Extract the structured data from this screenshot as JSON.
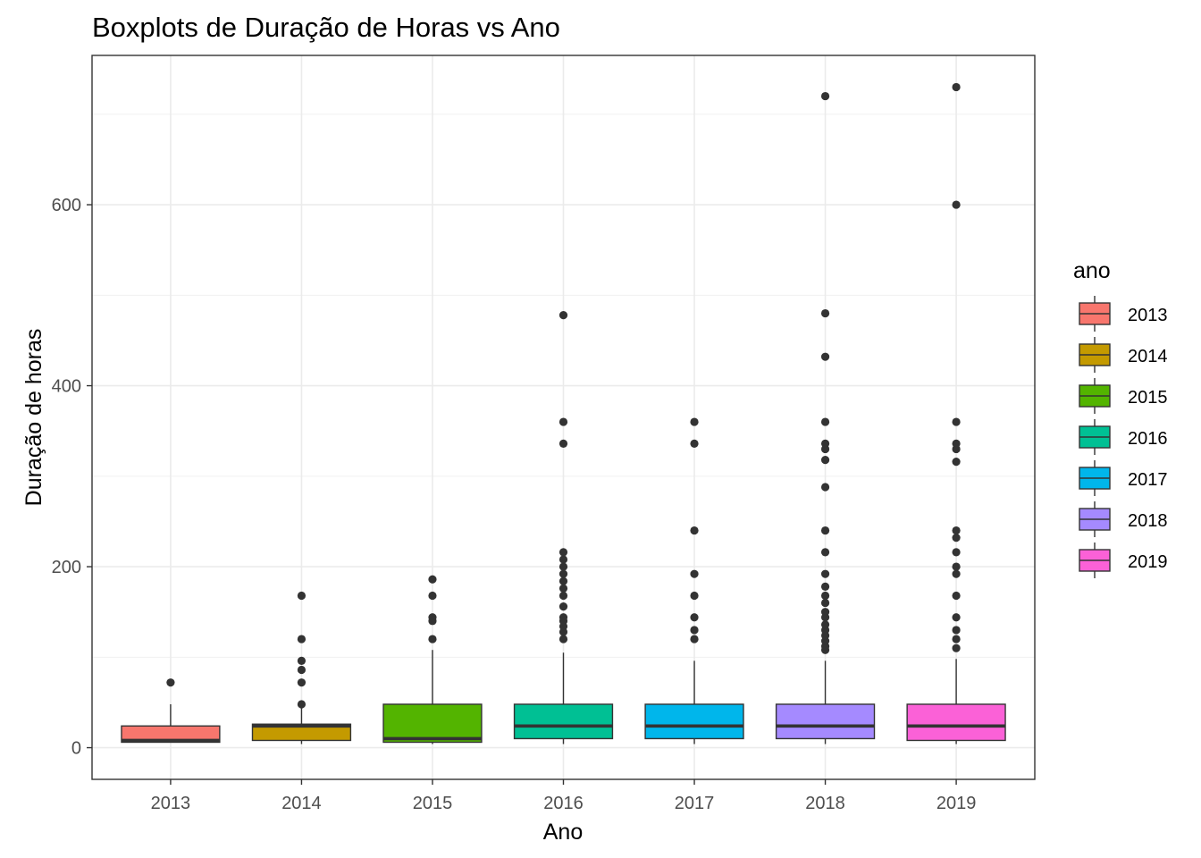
{
  "chart_data": {
    "type": "boxplot",
    "title": "Boxplots de Duração de Horas vs Ano",
    "xlabel": "Ano",
    "ylabel": "Duração de horas",
    "ylim": [
      -35,
      765
    ],
    "y_ticks": [
      0,
      200,
      400,
      600
    ],
    "grid": true,
    "legend": {
      "title": "ano",
      "placement": "right"
    },
    "categories": [
      "2013",
      "2014",
      "2015",
      "2016",
      "2017",
      "2018",
      "2019"
    ],
    "colors": [
      "#F8766D",
      "#C49A00",
      "#53B400",
      "#00C094",
      "#00B6EB",
      "#A58AFF",
      "#FB61D7"
    ],
    "boxes": [
      {
        "category": "2013",
        "min": 6,
        "q1": 6,
        "median": 8,
        "q3": 24,
        "max": 48,
        "outliers": [
          72
        ]
      },
      {
        "category": "2014",
        "min": 4,
        "q1": 8,
        "median": 24,
        "q3": 26,
        "max": 48,
        "outliers": [
          48,
          72,
          86,
          96,
          120,
          168
        ]
      },
      {
        "category": "2015",
        "min": 4,
        "q1": 6,
        "median": 10,
        "q3": 48,
        "max": 108,
        "outliers": [
          120,
          140,
          144,
          168,
          186
        ]
      },
      {
        "category": "2016",
        "min": 4,
        "q1": 10,
        "median": 24,
        "q3": 48,
        "max": 105,
        "outliers": [
          120,
          128,
          134,
          140,
          144,
          156,
          168,
          176,
          184,
          192,
          200,
          208,
          216,
          336,
          360,
          478
        ]
      },
      {
        "category": "2017",
        "min": 4,
        "q1": 10,
        "median": 24,
        "q3": 48,
        "max": 96,
        "outliers": [
          120,
          130,
          144,
          168,
          192,
          240,
          336,
          360
        ]
      },
      {
        "category": "2018",
        "min": 4,
        "q1": 10,
        "median": 24,
        "q3": 48,
        "max": 96,
        "outliers": [
          108,
          112,
          118,
          124,
          130,
          136,
          144,
          150,
          160,
          168,
          178,
          192,
          216,
          240,
          288,
          318,
          330,
          336,
          360,
          432,
          480,
          720
        ]
      },
      {
        "category": "2019",
        "min": 4,
        "q1": 8,
        "median": 24,
        "q3": 48,
        "max": 98,
        "outliers": [
          110,
          120,
          130,
          144,
          168,
          192,
          200,
          216,
          232,
          240,
          316,
          330,
          336,
          360,
          600,
          730
        ]
      }
    ]
  }
}
